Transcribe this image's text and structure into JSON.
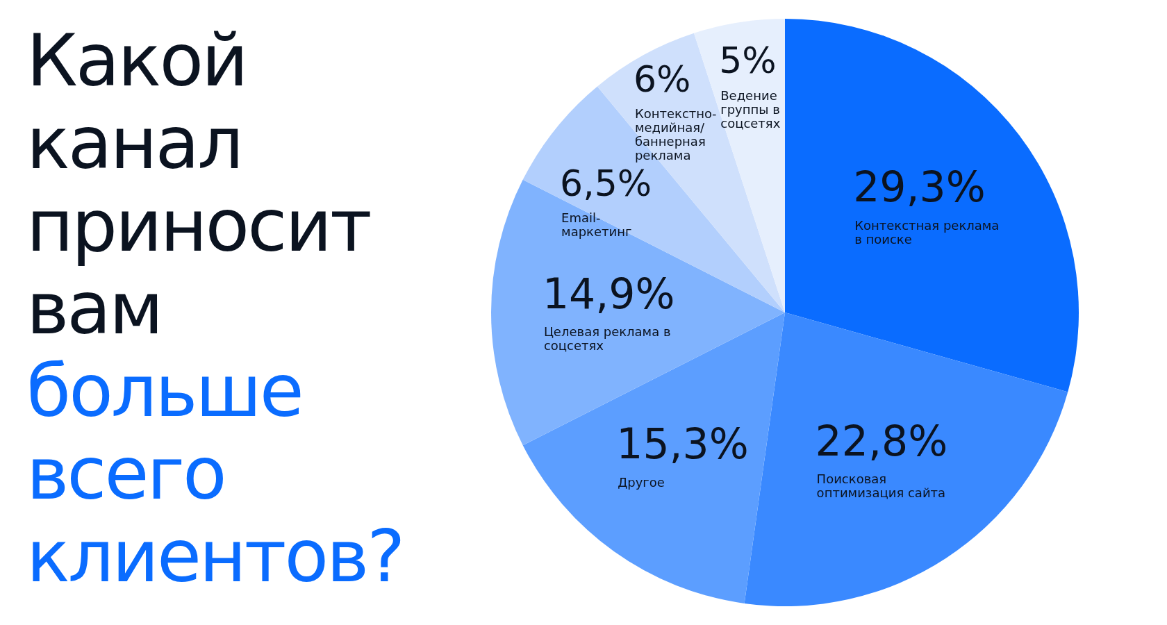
{
  "chart_data": {
    "type": "pie",
    "title": "Какой канал приносит вам",
    "subtitle": "больше всего клиентов?",
    "categories": [
      "Контекстная реклама в поиске",
      "Поисковая оптимизация сайта",
      "Другое",
      "Целевая реклама в соцсетях",
      "Email-маркетинг",
      "Контекстно-медийная/ баннерная реклама",
      "Ведение группы в соцсетях"
    ],
    "values": [
      29.3,
      22.8,
      15.3,
      14.9,
      6.5,
      6,
      5
    ],
    "value_labels": [
      "29,3%",
      "22,8%",
      "15,3%",
      "14,9%",
      "6,5%",
      "6%",
      "5%"
    ],
    "colors": [
      "#0a6cff",
      "#3a89ff",
      "#5c9eff",
      "#80b3fe",
      "#b2cffd",
      "#cfe0fc",
      "#e6effd"
    ]
  }
}
